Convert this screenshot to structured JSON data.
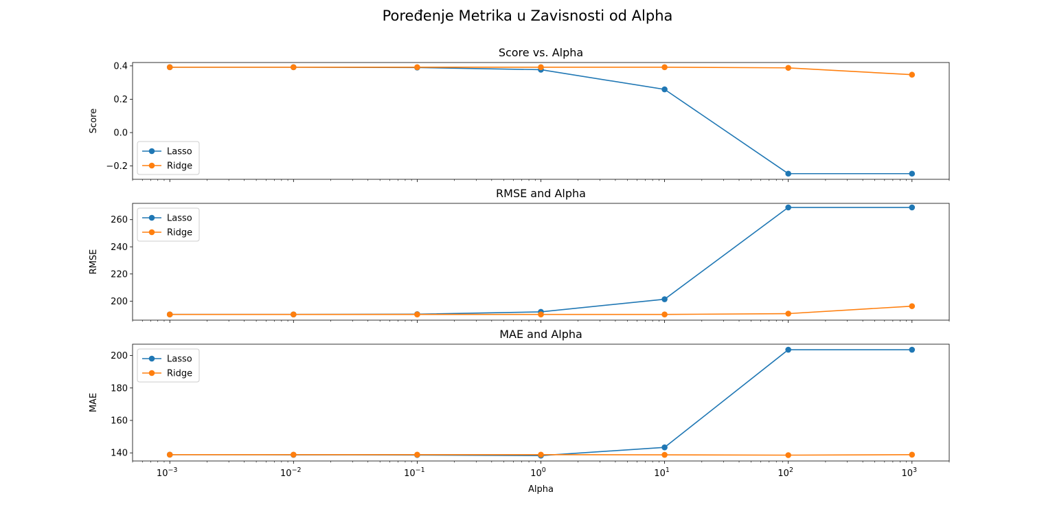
{
  "figure": {
    "suptitle": "Poređenje Metrika u Zavisnosti od Alpha"
  },
  "colors": {
    "lasso": "#1f77b4",
    "ridge": "#ff7f0e"
  },
  "chart_data": [
    {
      "type": "line",
      "title": "Score vs. Alpha",
      "xlabel": "",
      "ylabel": "Score",
      "xscale": "log",
      "xlim": [
        0.0005,
        2000
      ],
      "ylim": [
        -0.28,
        0.42
      ],
      "yticks": [
        -0.2,
        0.0,
        0.2,
        0.4
      ],
      "yticklabels": [
        "−0.2",
        "0.0",
        "0.2",
        "0.4"
      ],
      "legend": "lower-left",
      "x": [
        0.001,
        0.01,
        0.1,
        1,
        10,
        100,
        1000
      ],
      "series": [
        {
          "name": "Lasso",
          "values": [
            0.392,
            0.392,
            0.39,
            0.377,
            0.259,
            -0.246,
            -0.246
          ]
        },
        {
          "name": "Ridge",
          "values": [
            0.392,
            0.392,
            0.392,
            0.392,
            0.392,
            0.388,
            0.347
          ]
        }
      ]
    },
    {
      "type": "line",
      "title": "RMSE and Alpha",
      "xlabel": "",
      "ylabel": "RMSE",
      "xscale": "log",
      "xlim": [
        0.0005,
        2000
      ],
      "ylim": [
        186,
        272
      ],
      "yticks": [
        200,
        220,
        240,
        260
      ],
      "yticklabels": [
        "200",
        "220",
        "240",
        "260"
      ],
      "legend": "upper-left",
      "x": [
        0.001,
        0.01,
        0.1,
        1,
        10,
        100,
        1000
      ],
      "series": [
        {
          "name": "Lasso",
          "values": [
            190.2,
            190.2,
            190.4,
            192.1,
            201.4,
            269.0,
            269.0
          ]
        },
        {
          "name": "Ridge",
          "values": [
            190.2,
            190.2,
            190.2,
            190.2,
            190.2,
            190.8,
            196.3
          ]
        }
      ]
    },
    {
      "type": "line",
      "title": "MAE and Alpha",
      "xlabel": "Alpha",
      "ylabel": "MAE",
      "xscale": "log",
      "xlim": [
        0.0005,
        2000
      ],
      "ylim": [
        135,
        207
      ],
      "yticks": [
        140,
        160,
        180,
        200
      ],
      "yticklabels": [
        "140",
        "160",
        "180",
        "200"
      ],
      "legend": "upper-left",
      "x": [
        0.001,
        0.01,
        0.1,
        1,
        10,
        100,
        1000
      ],
      "series": [
        {
          "name": "Lasso",
          "values": [
            138.9,
            138.8,
            138.7,
            138.3,
            143.4,
            203.6,
            203.6
          ]
        },
        {
          "name": "Ridge",
          "values": [
            138.9,
            138.9,
            138.9,
            138.9,
            138.8,
            138.6,
            138.9
          ]
        }
      ],
      "xticklabels": [
        "10^-3",
        "10^-2",
        "10^-1",
        "10^0",
        "10^1",
        "10^2",
        "10^3"
      ]
    }
  ]
}
